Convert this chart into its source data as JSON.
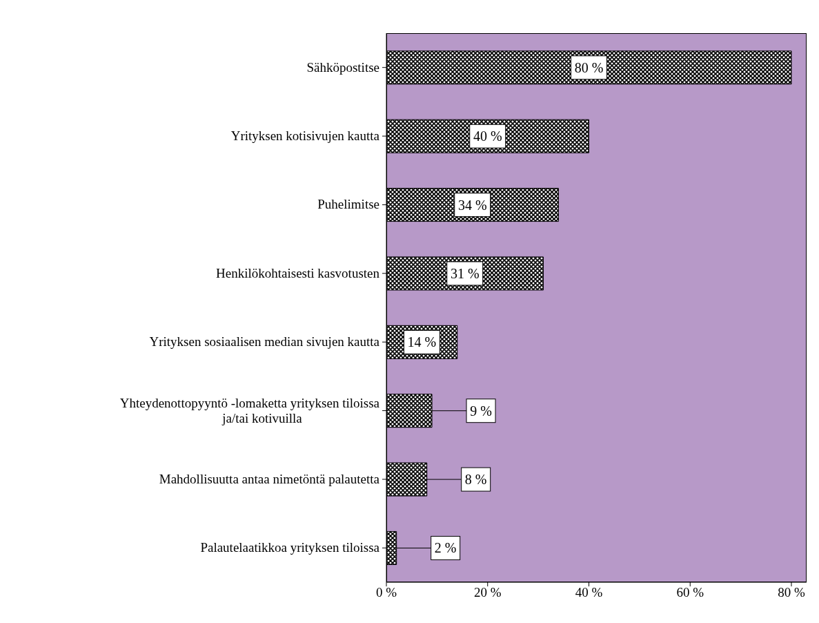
{
  "chart_data": {
    "type": "bar",
    "orientation": "horizontal",
    "categories": [
      "Sähköpostitse",
      "Yrityksen kotisivujen kautta",
      "Puhelimitse",
      "Henkilökohtaisesti kasvotusten",
      "Yrityksen sosiaalisen median sivujen kautta",
      "Yhteydenottopyyntö -lomaketta yrityksen tiloissa ja/tai kotivuilla",
      "Mahdollisuutta antaa nimetöntä palautetta",
      "Palautelaatikkoa yrityksen tiloissa"
    ],
    "values": [
      80,
      40,
      34,
      31,
      14,
      9,
      8,
      2
    ],
    "value_labels": [
      "80 %",
      "40 %",
      "34 %",
      "31 %",
      "14 %",
      "9 %",
      "8 %",
      "2 %"
    ],
    "color": "#000000",
    "xlim": [
      0,
      83
    ],
    "xticks": [
      {
        "value": 0,
        "label": "0 %"
      },
      {
        "value": 20,
        "label": "20 %"
      },
      {
        "value": 40,
        "label": "40 %"
      },
      {
        "value": 60,
        "label": "60 %"
      },
      {
        "value": 80,
        "label": "80 %"
      }
    ],
    "grid": false,
    "legend": false
  }
}
